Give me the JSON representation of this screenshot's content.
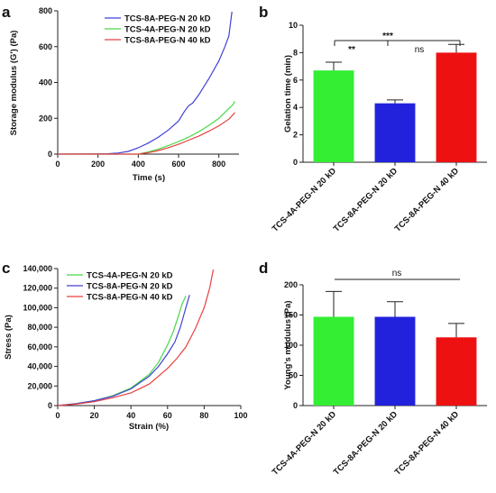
{
  "chart_data": [
    {
      "panel": "a",
      "type": "line",
      "xlabel": "Time (s)",
      "ylabel": "Storage modulus (G') (Pa)",
      "xlim": [
        0,
        900
      ],
      "ylim": [
        0,
        800
      ],
      "xticks": [
        "0",
        "200",
        "400",
        "600",
        "800"
      ],
      "yticks": [
        "0",
        "200",
        "400",
        "600",
        "800"
      ],
      "legend_position": "top-right",
      "series": [
        {
          "name": "TCS-8A-PEG-N 20 kD",
          "color": "#4040d8",
          "x": [
            0,
            250,
            300,
            350,
            400,
            450,
            500,
            550,
            600,
            630,
            650,
            670,
            700,
            750,
            800,
            830,
            850,
            865
          ],
          "y": [
            0,
            2,
            6,
            15,
            35,
            62,
            95,
            135,
            185,
            240,
            270,
            285,
            330,
            420,
            520,
            600,
            660,
            795
          ]
        },
        {
          "name": "TCS-4A-PEG-N 20 kD",
          "color": "#48d848",
          "x": [
            0,
            400,
            450,
            500,
            550,
            600,
            650,
            700,
            750,
            800,
            850,
            870,
            880
          ],
          "y": [
            0,
            0,
            12,
            28,
            48,
            70,
            95,
            125,
            160,
            200,
            255,
            275,
            295
          ]
        },
        {
          "name": "TCS-8A-PEG-N 40 kD",
          "color": "#e84040",
          "x": [
            0,
            400,
            450,
            500,
            550,
            600,
            650,
            700,
            750,
            800,
            850,
            880
          ],
          "y": [
            0,
            0,
            8,
            20,
            36,
            55,
            78,
            100,
            128,
            158,
            195,
            232
          ]
        }
      ]
    },
    {
      "panel": "b",
      "type": "bar",
      "ylabel": "Gelation time (min)",
      "ylim": [
        0,
        10
      ],
      "yticks": [
        "0",
        "2",
        "4",
        "6",
        "8",
        "10"
      ],
      "categories": [
        "TCS-4A-PEG-N 20 kD",
        "TCS-8A-PEG-N 20 kD",
        "TCS-8A-PEG-N 40 kD"
      ],
      "values": [
        6.7,
        4.3,
        8.0
      ],
      "errors": [
        0.6,
        0.25,
        0.6
      ],
      "colors": [
        "#33ee33",
        "#2222dd",
        "#ee1111"
      ],
      "significance": [
        "**",
        "***",
        "ns"
      ]
    },
    {
      "panel": "c",
      "type": "line",
      "xlabel": "Strain (%)",
      "ylabel": "Stress (Pa)",
      "xlim": [
        0,
        100
      ],
      "ylim": [
        0,
        140000
      ],
      "xticks": [
        "0",
        "20",
        "40",
        "60",
        "80",
        "100"
      ],
      "yticks": [
        "0",
        "20,000",
        "40,000",
        "60,000",
        "80,000",
        "100,000",
        "120,000",
        "140,000"
      ],
      "legend_position": "top-left",
      "series": [
        {
          "name": "TCS-4A-PEG-N 20 kD",
          "color": "#48d848",
          "x": [
            0,
            10,
            20,
            30,
            40,
            50,
            55,
            60,
            63,
            66,
            68,
            70
          ],
          "y": [
            0,
            2000,
            5000,
            10000,
            18000,
            32000,
            44000,
            62000,
            75000,
            92000,
            104000,
            112000
          ]
        },
        {
          "name": "TCS-8A-PEG-N 20 kD",
          "color": "#4040d8",
          "x": [
            0,
            10,
            20,
            30,
            40,
            50,
            55,
            60,
            64,
            67,
            70,
            72
          ],
          "y": [
            0,
            2000,
            5000,
            9500,
            17000,
            30000,
            40000,
            53000,
            65000,
            80000,
            100000,
            113000
          ]
        },
        {
          "name": "TCS-8A-PEG-N 40 kD",
          "color": "#e84040",
          "x": [
            0,
            10,
            20,
            30,
            40,
            50,
            55,
            60,
            65,
            70,
            75,
            80,
            83,
            85
          ],
          "y": [
            0,
            1500,
            4000,
            8000,
            13000,
            22000,
            30000,
            38000,
            48000,
            60000,
            78000,
            100000,
            120000,
            139000
          ]
        }
      ]
    },
    {
      "panel": "d",
      "type": "bar",
      "ylabel": "Young's modulus (Pa)",
      "ylim": [
        0,
        200
      ],
      "yticks": [
        "0",
        "50",
        "100",
        "150",
        "200"
      ],
      "categories": [
        "TCS-4A-PEG-N 20 kD",
        "TCS-8A-PEG-N 20 kD",
        "TCS-8A-PEG-N 40 kD"
      ],
      "values": [
        147,
        147,
        113
      ],
      "errors": [
        42,
        25,
        23
      ],
      "colors": [
        "#33ee33",
        "#2222dd",
        "#ee1111"
      ],
      "significance": [
        "ns"
      ]
    }
  ]
}
